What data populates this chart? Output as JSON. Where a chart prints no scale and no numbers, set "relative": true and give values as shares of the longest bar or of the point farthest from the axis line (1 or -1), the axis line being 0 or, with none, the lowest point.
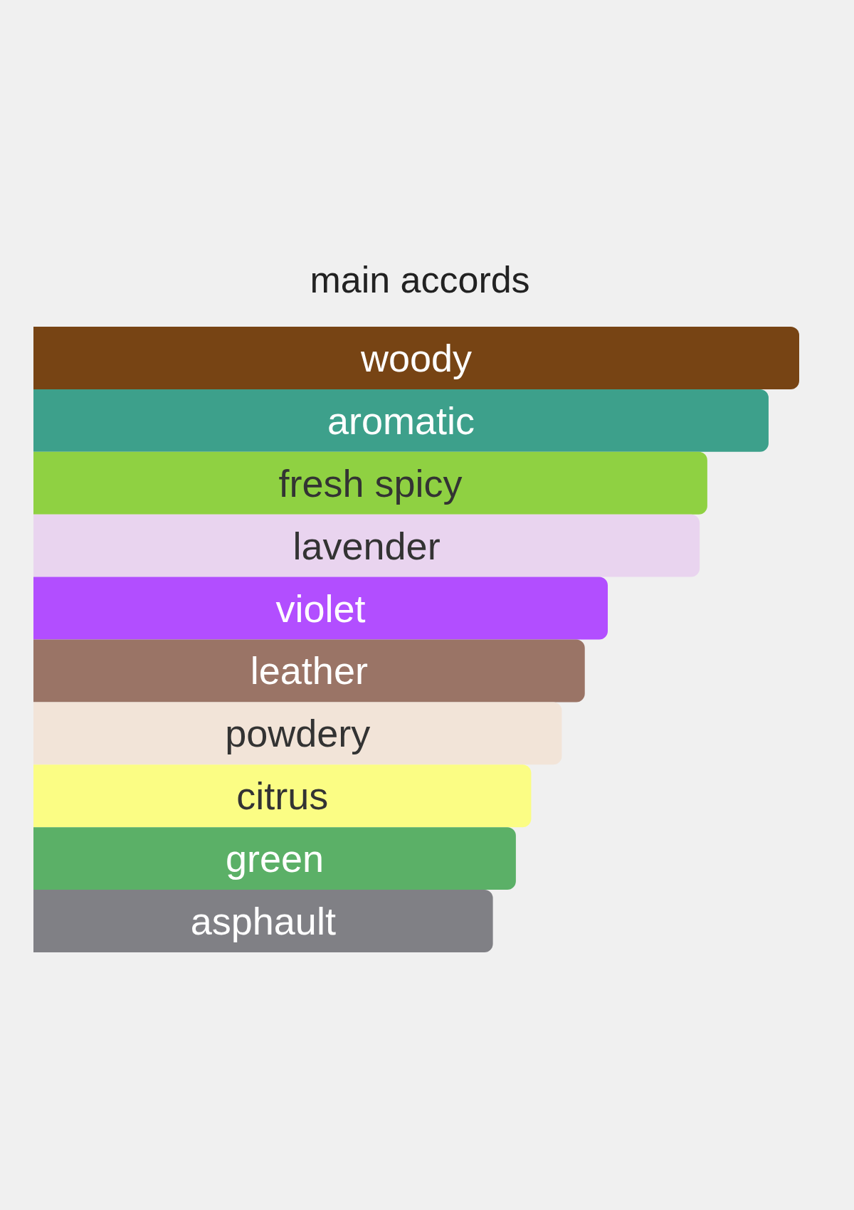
{
  "chart_data": {
    "type": "bar",
    "title": "main accords",
    "orientation": "horizontal",
    "relative": true,
    "categories": [
      "woody",
      "aromatic",
      "fresh spicy",
      "lavender",
      "violet",
      "leather",
      "powdery",
      "citrus",
      "green",
      "asphault"
    ],
    "values": [
      1,
      0.96,
      0.88,
      0.87,
      0.75,
      0.72,
      0.69,
      0.65,
      0.63,
      0.6
    ],
    "colors": [
      "#774414",
      "#3da08b",
      "#8fd142",
      "#e9d4ef",
      "#b24eff",
      "#9a7466",
      "#f2e4d8",
      "#fbfd84",
      "#5bb067",
      "#808085"
    ]
  }
}
